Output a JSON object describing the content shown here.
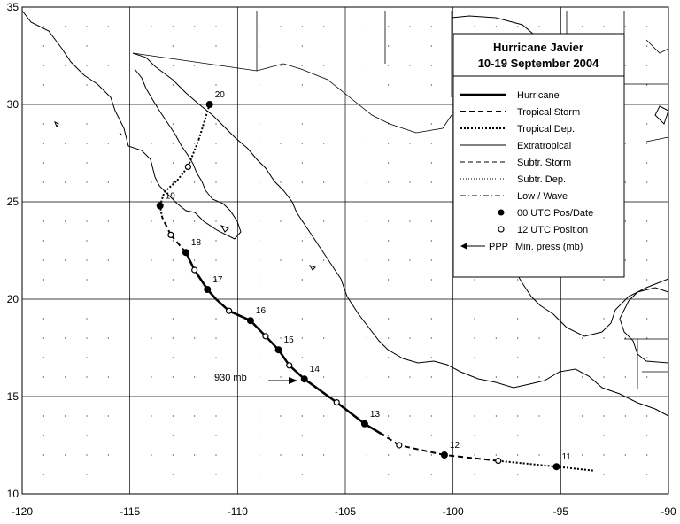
{
  "title": {
    "line1": "Hurricane Javier",
    "line2": "10-19 September 2004"
  },
  "axes": {
    "x_ticks": [
      "-120",
      "-115",
      "-110",
      "-105",
      "-100",
      "-95",
      "-90"
    ],
    "y_ticks": [
      "35",
      "30",
      "25",
      "20",
      "15",
      "10"
    ],
    "lon_range": [
      -120,
      -90
    ],
    "lat_range": [
      10,
      35
    ],
    "grid": "on"
  },
  "legend": {
    "placement": "top-right",
    "items": [
      {
        "label": "Hurricane",
        "style": "thick-solid"
      },
      {
        "label": "Tropical Storm",
        "style": "thick-dashed"
      },
      {
        "label": "Tropical Dep.",
        "style": "thick-dotted"
      },
      {
        "label": "Extratropical",
        "style": "thin-solid"
      },
      {
        "label": "Subtr. Storm",
        "style": "thin-dashed"
      },
      {
        "label": "Subtr. Dep.",
        "style": "thin-dotted"
      },
      {
        "label": "Low / Wave",
        "style": "dash-dot"
      },
      {
        "label": "00 UTC Pos/Date",
        "style": "filled-circle"
      },
      {
        "label": "12 UTC Position",
        "style": "open-circle"
      },
      {
        "label": "PPP",
        "style": "arrow",
        "extra": "Min. press (mb)"
      }
    ]
  },
  "annotation": {
    "pressure_label": "930 mb",
    "pressure_lon": -107.0,
    "pressure_lat": 15.9
  },
  "colors": {
    "background": "#ffffff",
    "lines": "#000000",
    "grid": "#000000"
  },
  "chart_data": {
    "type": "scatter",
    "track": [
      {
        "lon": -93.5,
        "lat": 11.2,
        "stage": "TD",
        "kind": "none",
        "date": ""
      },
      {
        "lon": -95.2,
        "lat": 11.4,
        "stage": "TD",
        "kind": "00",
        "date": "11"
      },
      {
        "lon": -97.9,
        "lat": 11.7,
        "stage": "TS",
        "kind": "12",
        "date": ""
      },
      {
        "lon": -100.4,
        "lat": 12.0,
        "stage": "TS",
        "kind": "00",
        "date": "12"
      },
      {
        "lon": -102.5,
        "lat": 12.5,
        "stage": "TS",
        "kind": "12",
        "date": ""
      },
      {
        "lon": -103.2,
        "lat": 13.0,
        "stage": "H",
        "kind": "none",
        "date": ""
      },
      {
        "lon": -104.1,
        "lat": 13.6,
        "stage": "H",
        "kind": "00",
        "date": "13"
      },
      {
        "lon": -105.4,
        "lat": 14.7,
        "stage": "H",
        "kind": "12",
        "date": ""
      },
      {
        "lon": -106.9,
        "lat": 15.9,
        "stage": "H",
        "kind": "00",
        "date": "14"
      },
      {
        "lon": -107.6,
        "lat": 16.6,
        "stage": "H",
        "kind": "12",
        "date": ""
      },
      {
        "lon": -108.1,
        "lat": 17.4,
        "stage": "H",
        "kind": "00",
        "date": "15"
      },
      {
        "lon": -108.7,
        "lat": 18.1,
        "stage": "H",
        "kind": "12",
        "date": ""
      },
      {
        "lon": -109.4,
        "lat": 18.9,
        "stage": "H",
        "kind": "00",
        "date": "16"
      },
      {
        "lon": -110.4,
        "lat": 19.4,
        "stage": "H",
        "kind": "12",
        "date": ""
      },
      {
        "lon": -111.0,
        "lat": 20.0,
        "stage": "H",
        "kind": "none",
        "date": ""
      },
      {
        "lon": -111.4,
        "lat": 20.5,
        "stage": "H",
        "kind": "00",
        "date": "17"
      },
      {
        "lon": -112.0,
        "lat": 21.5,
        "stage": "H",
        "kind": "12",
        "date": ""
      },
      {
        "lon": -112.4,
        "lat": 22.4,
        "stage": "H",
        "kind": "00",
        "date": "18"
      },
      {
        "lon": -113.1,
        "lat": 23.3,
        "stage": "TS",
        "kind": "12",
        "date": ""
      },
      {
        "lon": -113.5,
        "lat": 24.2,
        "stage": "TS",
        "kind": "none",
        "date": ""
      },
      {
        "lon": -113.6,
        "lat": 24.8,
        "stage": "TD",
        "kind": "00",
        "date": "19"
      },
      {
        "lon": -113.4,
        "lat": 25.5,
        "stage": "TD",
        "kind": "none",
        "date": ""
      },
      {
        "lon": -112.8,
        "lat": 26.1,
        "stage": "TD",
        "kind": "none",
        "date": ""
      },
      {
        "lon": -112.3,
        "lat": 26.8,
        "stage": "TD",
        "kind": "12",
        "date": ""
      },
      {
        "lon": -111.8,
        "lat": 28.2,
        "stage": "TD",
        "kind": "none",
        "date": ""
      },
      {
        "lon": -111.3,
        "lat": 30.0,
        "stage": "TD",
        "kind": "00",
        "date": "20"
      }
    ]
  }
}
